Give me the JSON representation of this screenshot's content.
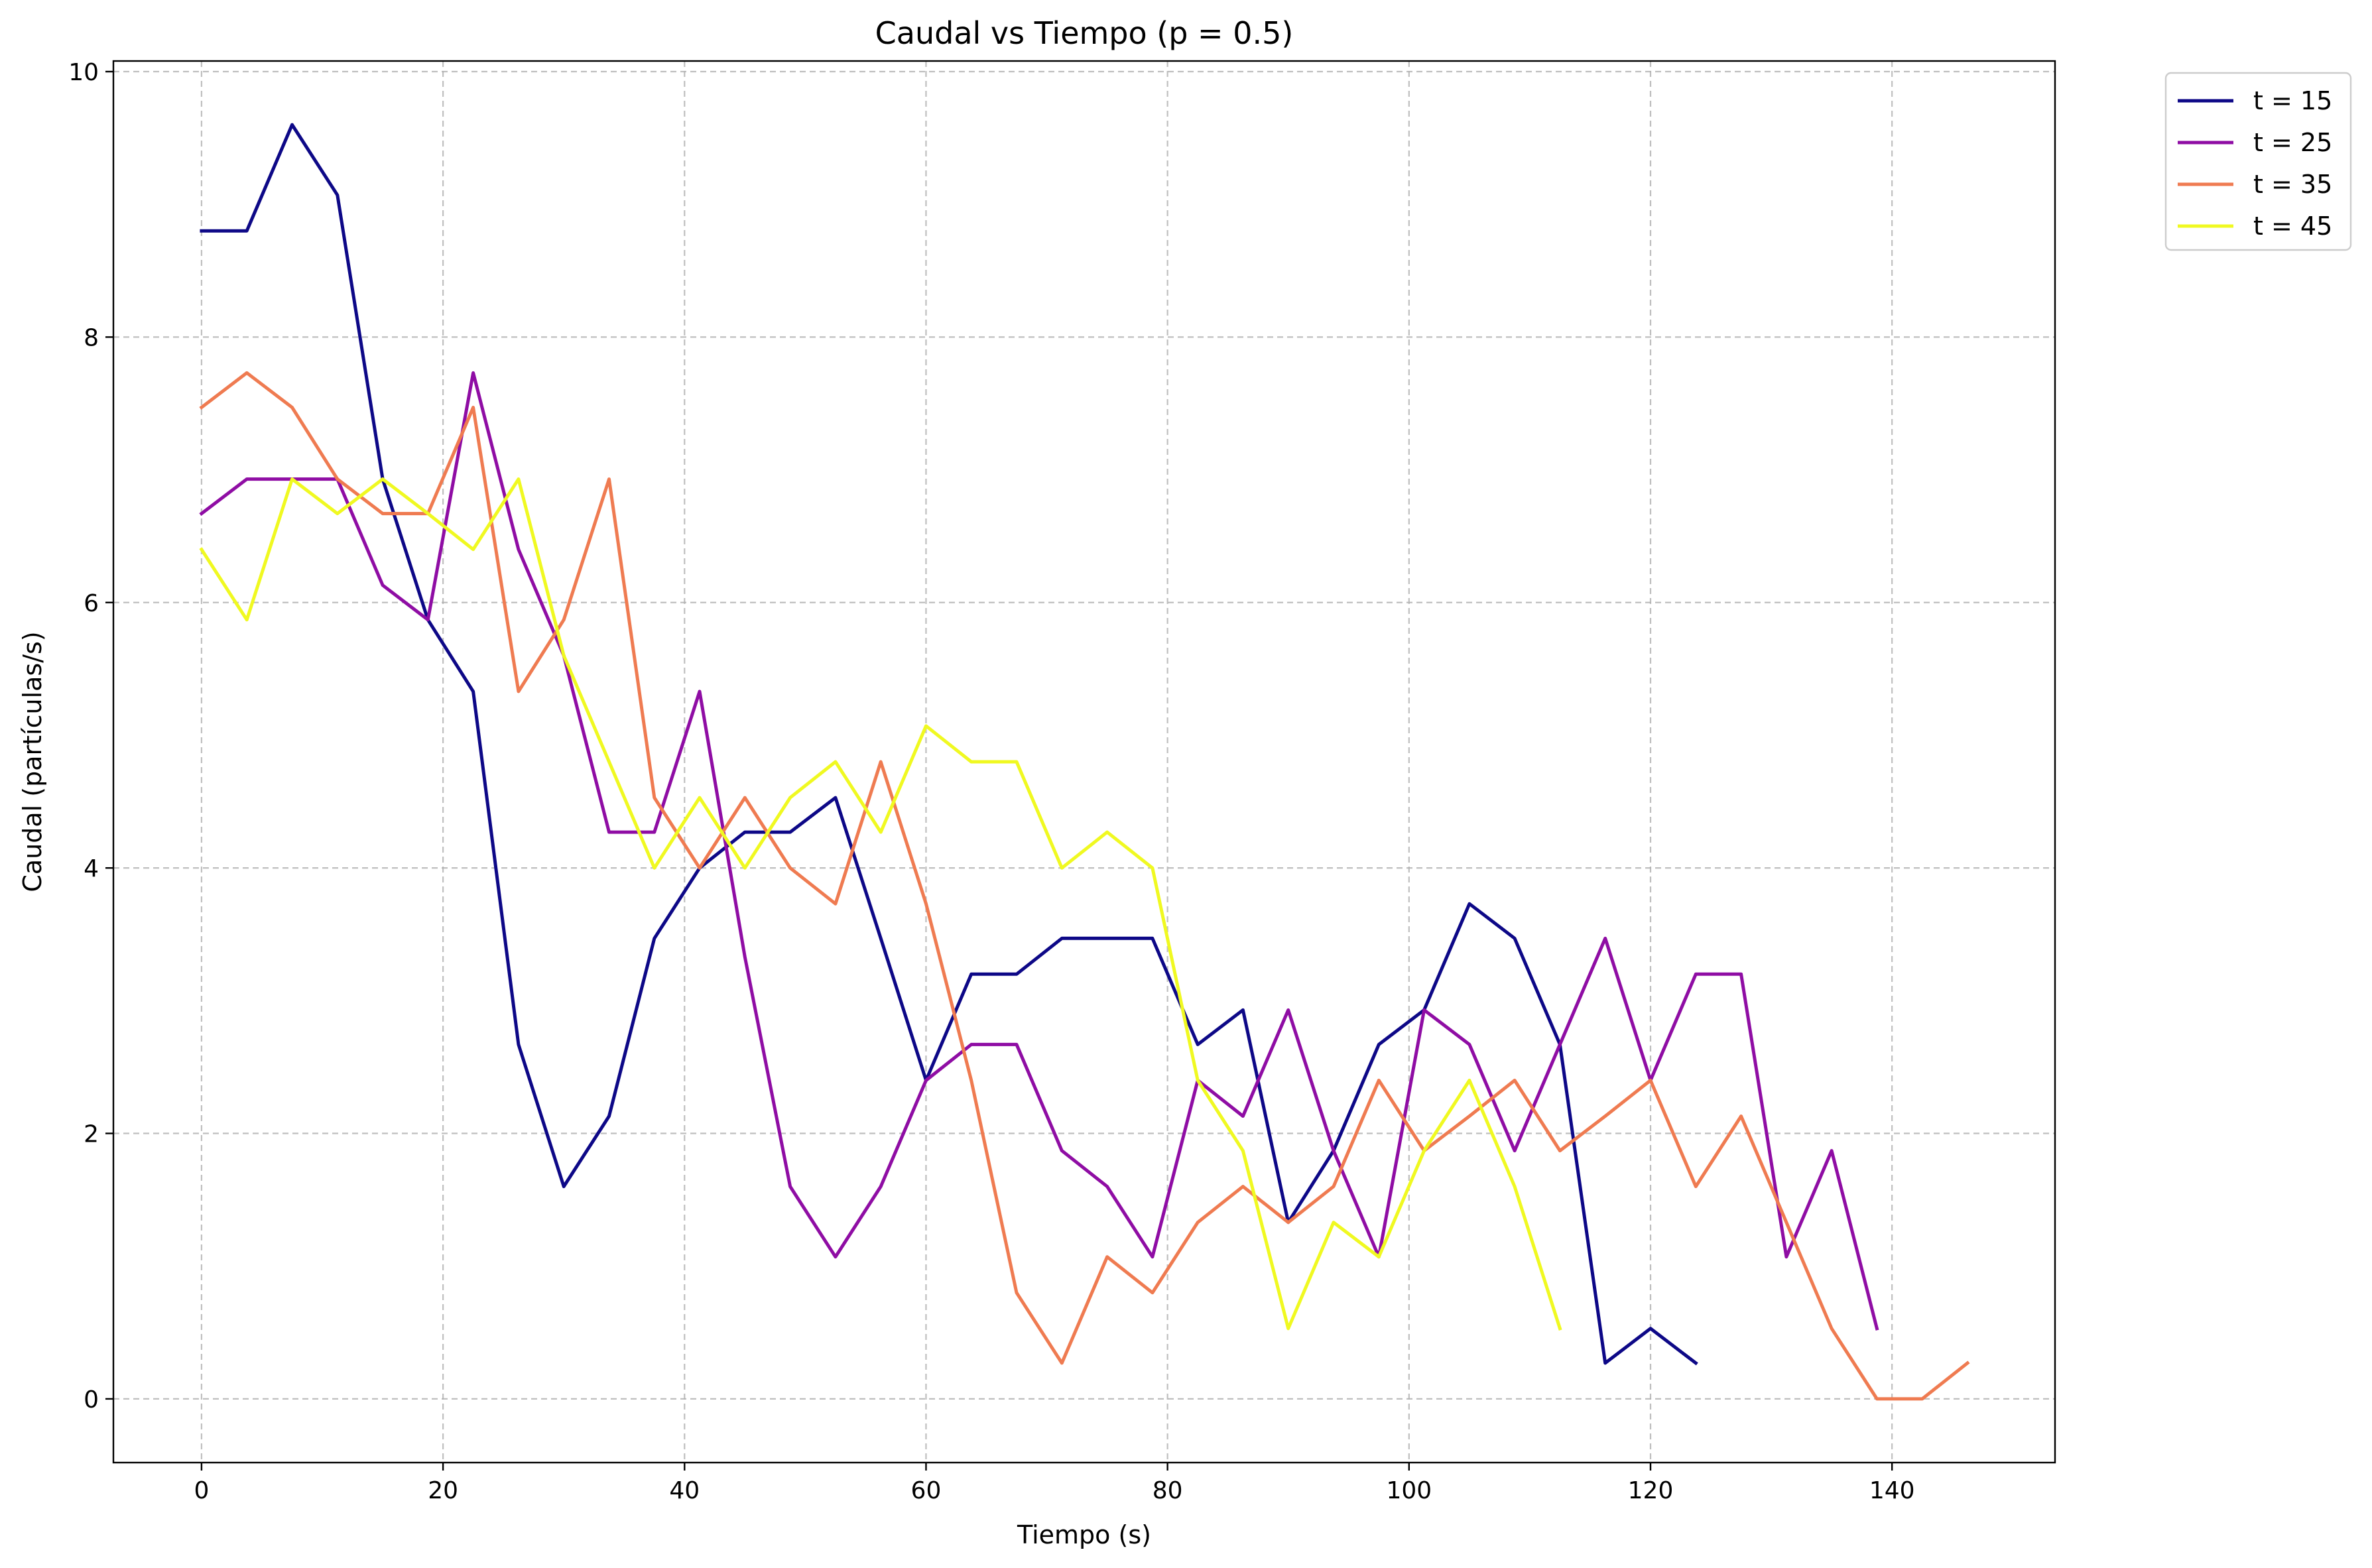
{
  "chart_data": {
    "type": "line",
    "title": "Caudal vs Tiempo (p = 0.5)",
    "xlabel": "Tiempo (s)",
    "ylabel": "Caudal (partículas/s)",
    "xlim": [
      -7.3,
      153.5
    ],
    "ylim": [
      -0.48,
      10.08
    ],
    "xticks": [
      0,
      20,
      40,
      60,
      80,
      100,
      120,
      140
    ],
    "xtick_labels": [
      "0",
      "20",
      "40",
      "60",
      "80",
      "100",
      "120",
      "140"
    ],
    "yticks": [
      0,
      2,
      4,
      6,
      8,
      10
    ],
    "ytick_labels": [
      "0",
      "2",
      "4",
      "6",
      "8",
      "10"
    ],
    "grid": true,
    "legend_position": "outside top-right",
    "series": [
      {
        "name": "t = 15",
        "color": "#0d0887",
        "x": [
          0,
          3.75,
          7.5,
          11.25,
          15,
          18.75,
          22.5,
          26.25,
          30,
          33.75,
          37.5,
          41.25,
          45,
          48.75,
          52.5,
          56.25,
          60,
          63.75,
          67.5,
          71.25,
          75,
          78.75,
          82.5,
          86.25,
          90,
          93.75,
          97.5,
          101.25,
          105,
          108.75,
          112.5,
          116.25,
          120,
          123.75
        ],
        "y": [
          8.8,
          8.8,
          9.6,
          9.07,
          6.93,
          5.87,
          5.33,
          2.67,
          1.6,
          2.13,
          3.47,
          4.0,
          4.27,
          4.27,
          4.53,
          3.47,
          2.4,
          3.2,
          3.2,
          3.47,
          3.47,
          3.47,
          2.67,
          2.93,
          1.33,
          1.87,
          2.67,
          2.93,
          3.73,
          3.47,
          2.67,
          0.27,
          0.53,
          0.27
        ]
      },
      {
        "name": "t = 25",
        "color": "#8f0da4",
        "x": [
          0,
          3.75,
          7.5,
          11.25,
          15,
          18.75,
          22.5,
          26.25,
          30,
          33.75,
          37.5,
          41.25,
          45,
          48.75,
          52.5,
          56.25,
          60,
          63.75,
          67.5,
          71.25,
          75,
          78.75,
          82.5,
          86.25,
          90,
          93.75,
          97.5,
          101.25,
          105,
          108.75,
          112.5,
          116.25,
          120,
          123.75,
          127.5,
          131.25,
          135,
          138.75
        ],
        "y": [
          6.67,
          6.93,
          6.93,
          6.93,
          6.13,
          5.87,
          7.73,
          6.4,
          5.6,
          4.27,
          4.27,
          5.33,
          3.33,
          1.6,
          1.07,
          1.6,
          2.4,
          2.67,
          2.67,
          1.87,
          1.6,
          1.07,
          2.4,
          2.13,
          2.93,
          1.87,
          1.07,
          2.93,
          2.67,
          1.87,
          2.67,
          3.47,
          2.4,
          3.2,
          3.2,
          1.07,
          1.87,
          0.53
        ]
      },
      {
        "name": "t = 35",
        "color": "#ef7b51",
        "x": [
          0,
          3.75,
          7.5,
          11.25,
          15,
          18.75,
          22.5,
          26.25,
          30,
          33.75,
          37.5,
          41.25,
          45,
          48.75,
          52.5,
          56.25,
          60,
          63.75,
          67.5,
          71.25,
          75,
          78.75,
          82.5,
          86.25,
          90,
          93.75,
          97.5,
          101.25,
          105,
          108.75,
          112.5,
          116.25,
          120,
          123.75,
          127.5,
          131.25,
          135,
          138.75,
          142.5,
          146.25
        ],
        "y": [
          7.47,
          7.73,
          7.47,
          6.93,
          6.67,
          6.67,
          7.47,
          5.33,
          5.87,
          6.93,
          4.53,
          4.0,
          4.53,
          4.0,
          3.73,
          4.8,
          3.73,
          2.4,
          0.8,
          0.27,
          1.07,
          0.8,
          1.33,
          1.6,
          1.33,
          1.6,
          2.4,
          1.87,
          2.13,
          2.4,
          1.87,
          2.13,
          2.4,
          1.6,
          2.13,
          1.33,
          0.53,
          0.0,
          0.0,
          0.27
        ]
      },
      {
        "name": "t = 45",
        "color": "#f0f921",
        "x": [
          0,
          3.75,
          7.5,
          11.25,
          15,
          18.75,
          22.5,
          26.25,
          30,
          33.75,
          37.5,
          41.25,
          45,
          48.75,
          52.5,
          56.25,
          60,
          63.75,
          67.5,
          71.25,
          75,
          78.75,
          82.5,
          86.25,
          90,
          93.75,
          97.5,
          101.25,
          105,
          108.75,
          112.5
        ],
        "y": [
          6.4,
          5.87,
          6.93,
          6.67,
          6.93,
          6.67,
          6.4,
          6.93,
          5.6,
          4.8,
          4.0,
          4.53,
          4.0,
          4.53,
          4.8,
          4.27,
          5.07,
          4.8,
          4.8,
          4.0,
          4.27,
          4.0,
          2.4,
          1.87,
          0.53,
          1.33,
          1.07,
          1.87,
          2.4,
          1.6,
          0.53
        ]
      }
    ]
  }
}
